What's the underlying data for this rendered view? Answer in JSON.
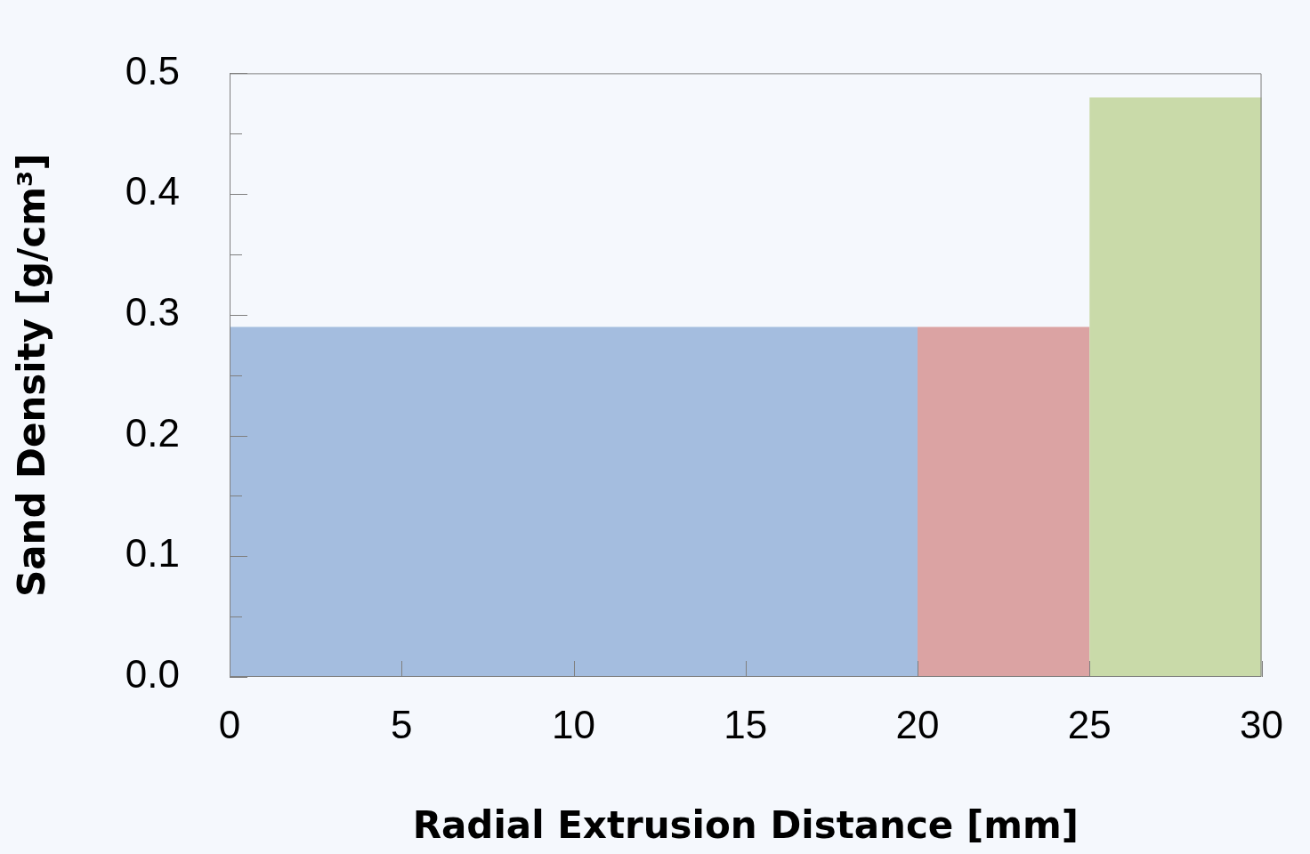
{
  "chart_data": {
    "type": "histogram",
    "xlabel": "Radial Extrusion Distance [mm]",
    "ylabel": "Sand Density [g/cm³]",
    "bins": [
      0,
      20,
      25,
      30
    ],
    "values": [
      0.29,
      0.29,
      0.48
    ],
    "colors": [
      "#a4bddf",
      "#dba3a3",
      "#c9daa9"
    ],
    "xlim": [
      0,
      30
    ],
    "xticks": [
      0,
      5,
      10,
      15,
      20,
      25,
      30
    ],
    "ylim": [
      0,
      0.5
    ],
    "yticks": [
      {
        "value": 0,
        "label": "0.0"
      },
      {
        "value": 0.05,
        "label": null
      },
      0.1,
      {
        "value": 0.15,
        "label": null
      },
      0.2,
      {
        "value": 0.25,
        "label": null
      },
      0.3,
      {
        "value": 0.35,
        "label": null
      },
      0.4,
      {
        "value": 0.45,
        "label": null
      },
      0.5
    ],
    "grid": false,
    "legend": false
  }
}
